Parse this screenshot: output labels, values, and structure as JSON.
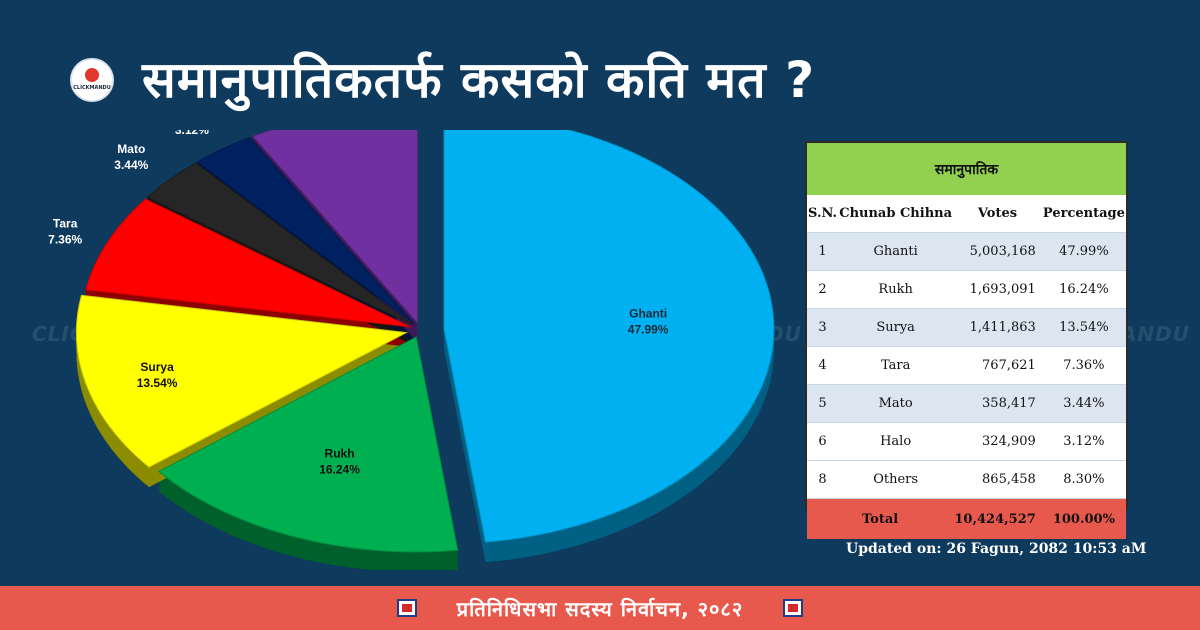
{
  "header": {
    "title": "समानुपातिकतर्फ कसको कति मत ?",
    "logo_text": "CLICKMANDU"
  },
  "watermark": "CLICKMANDU",
  "chart_data": {
    "type": "pie",
    "title": "",
    "labels": [
      "Ghanti",
      "Rukh",
      "Surya",
      "Tara",
      "Mato",
      "Halo",
      "Others"
    ],
    "values": [
      47.99,
      16.24,
      13.54,
      7.36,
      3.44,
      3.12,
      8.3
    ],
    "value_labels": [
      "47.99%",
      "16.24%",
      "13.54%",
      "7.36%",
      "3.44%",
      "3.12%",
      "8.30%"
    ],
    "colors": [
      "#00b0f0",
      "#00b050",
      "#ffff00",
      "#ff0000",
      "#262626",
      "#002060",
      "#7030a0"
    ]
  },
  "table": {
    "header": "समानुपातिक",
    "columns": [
      "S.N.",
      "Chunab Chihna",
      "Votes",
      "Percentage"
    ],
    "rows": [
      {
        "sn": "1",
        "name": "Ghanti",
        "votes": "5,003,168",
        "pct": "47.99%"
      },
      {
        "sn": "2",
        "name": "Rukh",
        "votes": "1,693,091",
        "pct": "16.24%"
      },
      {
        "sn": "3",
        "name": "Surya",
        "votes": "1,411,863",
        "pct": "13.54%"
      },
      {
        "sn": "4",
        "name": "Tara",
        "votes": "767,621",
        "pct": "7.36%"
      },
      {
        "sn": "5",
        "name": "Mato",
        "votes": "358,417",
        "pct": "3.44%"
      },
      {
        "sn": "6",
        "name": "Halo",
        "votes": "324,909",
        "pct": "3.12%"
      },
      {
        "sn": "8",
        "name": "Others",
        "votes": "865,458",
        "pct": "8.30%"
      }
    ],
    "total": {
      "label": "Total",
      "votes": "10,424,527",
      "pct": "100.00%"
    }
  },
  "updated": "Updated on: 26 Fagun, 2082 10:53 aM",
  "footer": "प्रतिनिधिसभा सदस्य निर्वाचन, २०८२"
}
